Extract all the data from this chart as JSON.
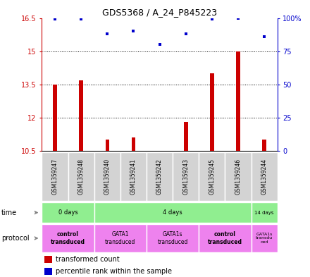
{
  "title": "GDS5368 / A_24_P845223",
  "samples": [
    "GSM1359247",
    "GSM1359248",
    "GSM1359240",
    "GSM1359241",
    "GSM1359242",
    "GSM1359243",
    "GSM1359245",
    "GSM1359246",
    "GSM1359244"
  ],
  "red_values": [
    13.5,
    13.7,
    11.0,
    11.1,
    10.52,
    11.8,
    14.0,
    15.0,
    11.0
  ],
  "blue_values": [
    99,
    99,
    88,
    90,
    80,
    88,
    99,
    100,
    86
  ],
  "ylim_left": [
    10.5,
    16.5
  ],
  "ylim_right": [
    0,
    100
  ],
  "yticks_left": [
    10.5,
    12.0,
    13.5,
    15.0,
    16.5
  ],
  "yticks_right": [
    0,
    25,
    50,
    75,
    100
  ],
  "ytick_labels_left": [
    "10.5",
    "12",
    "13.5",
    "15",
    "16.5"
  ],
  "ytick_labels_right": [
    "0",
    "25",
    "50",
    "75",
    "100%"
  ],
  "hlines": [
    12.0,
    13.5,
    15.0
  ],
  "red_color": "#cc0000",
  "blue_color": "#0000cc",
  "bar_width": 0.15,
  "bg_color": "#ffffff",
  "sample_bg_color": "#d3d3d3",
  "time_light_green": "#90ee90",
  "proto_pink": "#ee82ee",
  "legend_red_label": "transformed count",
  "legend_blue_label": "percentile rank within the sample",
  "time_spans": [
    [
      0,
      2,
      "0 days"
    ],
    [
      2,
      8,
      "4 days"
    ],
    [
      8,
      9,
      "14 days"
    ]
  ],
  "proto_spans": [
    [
      0,
      2,
      "control\ntransduced",
      true
    ],
    [
      2,
      4,
      "GATA1\ntransduced",
      false
    ],
    [
      4,
      6,
      "GATA1s\ntransduced",
      false
    ],
    [
      6,
      8,
      "control\ntransduced",
      true
    ],
    [
      8,
      9,
      "GATA1s\ntransdu\nced",
      false
    ]
  ]
}
